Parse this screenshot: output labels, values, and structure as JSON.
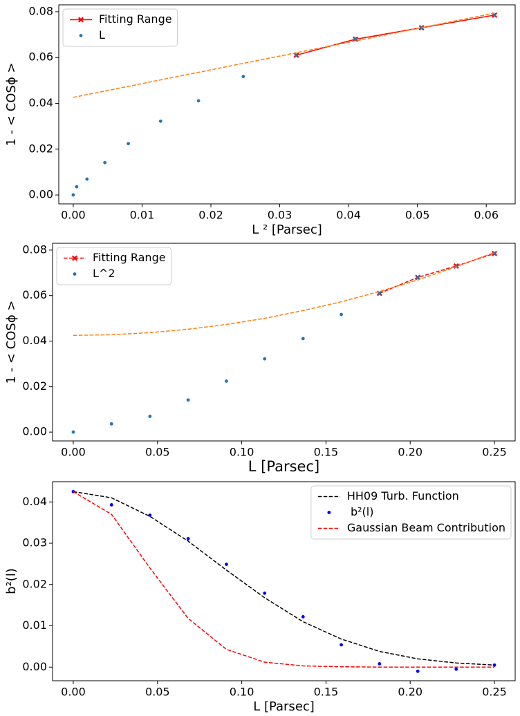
{
  "chart_data": [
    {
      "type": "line",
      "xlabel": "L ² [Parsec]",
      "ylabel": "1 - < COSϕ >",
      "xlim": [
        -0.0021,
        0.0642
      ],
      "ylim": [
        -0.0039,
        0.083
      ],
      "xticks": [
        {
          "value": 0,
          "label": "0.00"
        },
        {
          "value": 0.01,
          "label": "0.01"
        },
        {
          "value": 0.02,
          "label": "0.02"
        },
        {
          "value": 0.03,
          "label": "0.03"
        },
        {
          "value": 0.04,
          "label": "0.04"
        },
        {
          "value": 0.05,
          "label": "0.05"
        },
        {
          "value": 0.06,
          "label": "0.06"
        }
      ],
      "yticks": [
        {
          "value": 0,
          "label": "0.00"
        },
        {
          "value": 0.02,
          "label": "0.02"
        },
        {
          "value": 0.04,
          "label": "0.04"
        },
        {
          "value": 0.06,
          "label": "0.06"
        },
        {
          "value": 0.08,
          "label": "0.08"
        }
      ],
      "legend": "upper left",
      "series": [
        {
          "name": "Fitting Range",
          "color": "#ff0000",
          "mode": "line",
          "dash": false,
          "marker": "x",
          "x": [
            0.0324,
            0.041,
            0.0506,
            0.0612
          ],
          "values": [
            0.061,
            0.068,
            0.073,
            0.0785
          ]
        },
        {
          "name": "L",
          "color": "#1f77b4",
          "mode": "scatter",
          "x": [
            0,
            0.0005,
            0.002,
            0.0046,
            0.008,
            0.0127,
            0.0182,
            0.0247,
            0.0324,
            0.041,
            0.0506,
            0.0612
          ],
          "values": [
            0,
            0.0036,
            0.0069,
            0.0141,
            0.0224,
            0.0322,
            0.0411,
            0.0517,
            0.061,
            0.068,
            0.073,
            0.0785
          ]
        },
        {
          "color": "#ff7f0e",
          "mode": "line",
          "dash": true,
          "x": [
            0,
            0.0612
          ],
          "values": [
            0.0426,
            0.0794
          ]
        }
      ]
    },
    {
      "type": "line",
      "xlabel": "L [Parsec]",
      "ylabel": "1 - < COSϕ >",
      "xlim": [
        -0.0123,
        0.2623
      ],
      "ylim": [
        -0.0039,
        0.083
      ],
      "xticks": [
        {
          "value": 0,
          "label": "0.00"
        },
        {
          "value": 0.05,
          "label": "0.05"
        },
        {
          "value": 0.1,
          "label": "0.10"
        },
        {
          "value": 0.15,
          "label": "0.15"
        },
        {
          "value": 0.2,
          "label": "0.20"
        },
        {
          "value": 0.25,
          "label": "0.25"
        }
      ],
      "yticks": [
        {
          "value": 0,
          "label": "0.00"
        },
        {
          "value": 0.02,
          "label": "0.02"
        },
        {
          "value": 0.04,
          "label": "0.04"
        },
        {
          "value": 0.06,
          "label": "0.06"
        },
        {
          "value": 0.08,
          "label": "0.08"
        }
      ],
      "legend": "upper left",
      "series": [
        {
          "name": "Fitting Range",
          "color": "#ff0000",
          "mode": "line",
          "dash": true,
          "marker": "x",
          "x": [
            0.1818,
            0.2045,
            0.2273,
            0.25
          ],
          "values": [
            0.061,
            0.068,
            0.073,
            0.0785
          ]
        },
        {
          "name": "L^2",
          "color": "#1f77b4",
          "mode": "scatter",
          "x": [
            0,
            0.0227,
            0.0455,
            0.0682,
            0.0909,
            0.1136,
            0.1364,
            0.1591,
            0.1818,
            0.2045,
            0.2273,
            0.25
          ],
          "values": [
            0,
            0.0036,
            0.0069,
            0.0141,
            0.0224,
            0.0322,
            0.0411,
            0.0517,
            0.061,
            0.068,
            0.073,
            0.0785
          ]
        },
        {
          "color": "#ff7f0e",
          "mode": "line",
          "dash": true,
          "x": [
            0,
            0.0227,
            0.0455,
            0.0682,
            0.0909,
            0.1136,
            0.1364,
            0.1591,
            0.1818,
            0.2045,
            0.2273,
            0.25
          ],
          "values": [
            0.0425,
            0.0428,
            0.0437,
            0.0452,
            0.0473,
            0.05,
            0.0534,
            0.0573,
            0.0618,
            0.0669,
            0.0727,
            0.079
          ]
        }
      ]
    },
    {
      "type": "line",
      "xlabel": "L [Parsec]",
      "ylabel": "b²(l)",
      "xlim": [
        -0.0123,
        0.2623
      ],
      "ylim": [
        -0.0033,
        0.0449
      ],
      "xticks": [
        {
          "value": 0,
          "label": "0.00"
        },
        {
          "value": 0.05,
          "label": "0.05"
        },
        {
          "value": 0.1,
          "label": "0.10"
        },
        {
          "value": 0.15,
          "label": "0.15"
        },
        {
          "value": 0.2,
          "label": "0.20"
        },
        {
          "value": 0.25,
          "label": "0.25"
        }
      ],
      "yticks": [
        {
          "value": 0,
          "label": "0.00"
        },
        {
          "value": 0.01,
          "label": "0.01"
        },
        {
          "value": 0.02,
          "label": "0.02"
        },
        {
          "value": 0.03,
          "label": "0.03"
        },
        {
          "value": 0.04,
          "label": "0.04"
        }
      ],
      "legend": "upper right",
      "series": [
        {
          "name": "HH09 Turb. Function",
          "color": "#000000",
          "mode": "line",
          "dash": true,
          "x": [
            0,
            0.0227,
            0.0455,
            0.0682,
            0.0909,
            0.1136,
            0.1364,
            0.1591,
            0.1818,
            0.2045,
            0.2273,
            0.25
          ],
          "values": [
            0.0425,
            0.041,
            0.0365,
            0.0305,
            0.0235,
            0.0168,
            0.011,
            0.0068,
            0.0038,
            0.002,
            0.001,
            0.0005
          ]
        },
        {
          "name": " b²(l)",
          "color": "#0000ff",
          "mode": "scatter",
          "x": [
            0,
            0.0227,
            0.0455,
            0.0682,
            0.0909,
            0.1136,
            0.1364,
            0.1591,
            0.1818,
            0.2045,
            0.2273,
            0.25
          ],
          "values": [
            0.0425,
            0.0393,
            0.0368,
            0.0311,
            0.0249,
            0.0179,
            0.0122,
            0.0054,
            0.0008,
            -0.001,
            -0.0005,
            0.0005
          ]
        },
        {
          "name": "Gaussian Beam Contribution",
          "color": "#ff0000",
          "mode": "line",
          "dash": true,
          "x": [
            0,
            0.0227,
            0.0455,
            0.0682,
            0.0909,
            0.1136,
            0.1364,
            0.1591,
            0.1818,
            0.2045,
            0.2273,
            0.25
          ],
          "values": [
            0.0425,
            0.037,
            0.024,
            0.0118,
            0.0043,
            0.0012,
            0.0003,
            0.0001,
            0,
            0,
            0,
            0
          ]
        }
      ]
    }
  ]
}
